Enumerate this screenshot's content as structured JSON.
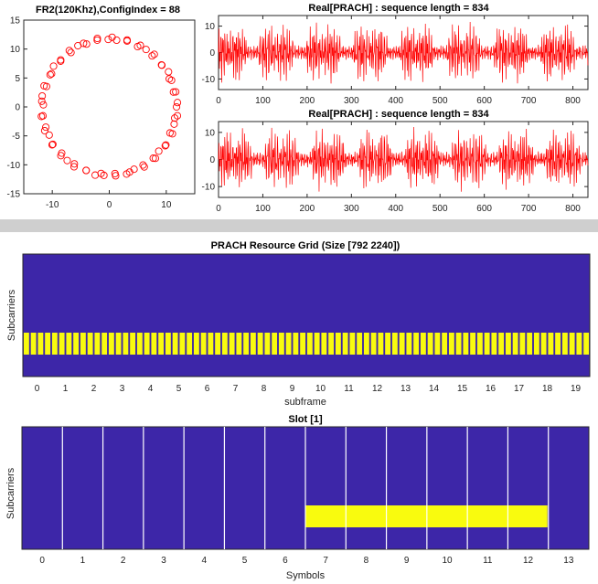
{
  "colors": {
    "signal": "#ff0000",
    "grid_background": "#3d26a8",
    "grid_active": "#f9fb0e",
    "slot_divider": "#ffffff",
    "separator": "#cfcfcf"
  },
  "chart_data": [
    {
      "type": "scatter",
      "title": "FR2(120Khz),ConfigIndex = 88",
      "marker": "circle-open",
      "xlim": [
        -15,
        15
      ],
      "ylim": [
        -15,
        15
      ],
      "xticks": [
        "-10",
        "0",
        "10"
      ],
      "yticks": [
        "15",
        "10",
        "5",
        "0",
        "-5",
        "-10",
        "-15"
      ],
      "radius": 11.8,
      "point_count": 70
    },
    {
      "type": "line",
      "title": "Real[PRACH] : sequence length = 834",
      "xlim": [
        0,
        834
      ],
      "ylim": [
        -14,
        14
      ],
      "xticks": [
        "0",
        "100",
        "200",
        "300",
        "400",
        "500",
        "600",
        "700",
        "800"
      ],
      "yticks": [
        "10",
        "0",
        "-10"
      ],
      "burst_period": 106,
      "amplitude": 12
    },
    {
      "type": "line",
      "title": "Real[PRACH] : sequence length = 834",
      "xlim": [
        0,
        834
      ],
      "ylim": [
        -14,
        14
      ],
      "xticks": [
        "0",
        "100",
        "200",
        "300",
        "400",
        "500",
        "600",
        "700",
        "800"
      ],
      "yticks": [
        "10",
        "0",
        "-10"
      ],
      "burst_period": 106,
      "amplitude": 12
    },
    {
      "type": "heatmap",
      "title": "PRACH Resource Grid (Size [792 2240])",
      "xlabel": "subframe",
      "ylabel": "Subcarriers",
      "xticks": [
        "0",
        "1",
        "2",
        "3",
        "4",
        "5",
        "6",
        "7",
        "8",
        "9",
        "10",
        "11",
        "12",
        "13",
        "14",
        "15",
        "16",
        "17",
        "18",
        "19"
      ],
      "size": [
        792,
        2240
      ],
      "active_band_subcarriers": [
        240,
        380
      ],
      "active_stripes_per_subframe": 4
    },
    {
      "type": "heatmap",
      "title": "Slot [1]",
      "xlabel": "Symbols",
      "ylabel": "Subcarriers",
      "xticks": [
        "0",
        "1",
        "2",
        "3",
        "4",
        "5",
        "6",
        "7",
        "8",
        "9",
        "10",
        "11",
        "12",
        "13"
      ],
      "active_symbols": [
        7,
        12
      ],
      "active_band_subcarriers": [
        240,
        380
      ]
    }
  ]
}
